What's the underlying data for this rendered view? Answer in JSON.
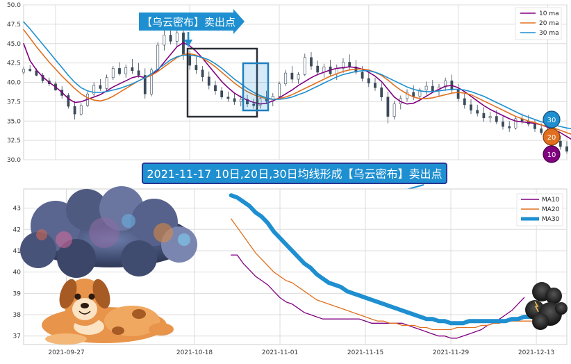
{
  "colors": {
    "ma10": "#800080",
    "ma20": "#e07020",
    "ma30": "#1e8fd0",
    "candle": "#3a4a5a",
    "grid": "#dcdcdc",
    "panel_bg": "#ffffff",
    "callout_fill": "#1e8fd0",
    "callout_border": "#283593",
    "box_dark": "#2b2f36",
    "box_blue": "#1e7fc0"
  },
  "callouts": {
    "top_arrow_text": "【乌云密布】卖出点",
    "middle_banner_text": "2021-11-17 10日,20日,30日均线形成【乌云密布】卖出点"
  },
  "badges": {
    "b30": "30",
    "b20": "20",
    "b10": "10"
  },
  "decorations": [
    "storm-cloud-illustration",
    "cartoon-dog-illustration",
    "small-dark-cloud-illustration"
  ],
  "chart_data": [
    {
      "type": "line",
      "title": "",
      "xlim": [
        "2021-09-22",
        "2021-12-16"
      ],
      "ylim": [
        30.0,
        50.0
      ],
      "y_ticks": [
        "30.0",
        "32.5",
        "35.0",
        "37.5",
        "40.0",
        "42.5",
        "45.0",
        "47.5",
        "50.0"
      ],
      "grid": true,
      "legend_position": "top-right",
      "candles": [
        [
          41.3,
          42.0,
          41.0,
          41.7
        ],
        [
          41.7,
          42.2,
          41.3,
          41.5
        ],
        [
          41.5,
          41.8,
          40.8,
          40.9
        ],
        [
          40.9,
          41.2,
          39.9,
          40.2
        ],
        [
          40.2,
          40.6,
          39.5,
          39.8
        ],
        [
          39.8,
          40.1,
          38.9,
          39.0
        ],
        [
          39.0,
          39.5,
          37.9,
          38.3
        ],
        [
          38.3,
          38.6,
          36.6,
          36.9
        ],
        [
          36.9,
          37.6,
          35.2,
          35.9
        ],
        [
          35.9,
          37.3,
          35.7,
          37.0
        ],
        [
          37.0,
          38.8,
          36.8,
          38.5
        ],
        [
          38.5,
          40.0,
          38.2,
          39.6
        ],
        [
          39.6,
          40.4,
          38.9,
          39.2
        ],
        [
          39.2,
          41.0,
          39.0,
          40.6
        ],
        [
          40.6,
          42.1,
          40.3,
          41.8
        ],
        [
          41.8,
          42.6,
          40.9,
          41.1
        ],
        [
          41.1,
          42.3,
          40.6,
          41.9
        ],
        [
          41.9,
          43.0,
          41.1,
          41.5
        ],
        [
          41.5,
          42.5,
          40.6,
          40.9
        ],
        [
          40.9,
          41.8,
          37.9,
          38.5
        ],
        [
          38.5,
          41.9,
          38.2,
          41.6
        ],
        [
          41.6,
          45.2,
          41.3,
          44.8
        ],
        [
          44.8,
          46.8,
          44.1,
          46.1
        ],
        [
          46.1,
          47.6,
          44.9,
          45.3
        ],
        [
          45.3,
          46.9,
          44.6,
          46.4
        ],
        [
          46.4,
          47.1,
          42.9,
          43.6
        ],
        [
          43.6,
          44.1,
          41.6,
          42.2
        ],
        [
          42.2,
          43.3,
          41.1,
          41.6
        ],
        [
          41.6,
          42.1,
          40.1,
          40.7
        ],
        [
          40.7,
          41.4,
          39.1,
          39.6
        ],
        [
          39.6,
          40.2,
          38.4,
          38.9
        ],
        [
          38.9,
          39.4,
          37.8,
          38.1
        ],
        [
          38.1,
          38.8,
          37.5,
          37.9
        ],
        [
          37.9,
          38.6,
          37.1,
          37.5
        ],
        [
          37.5,
          38.3,
          36.9,
          37.8
        ],
        [
          37.8,
          38.4,
          36.8,
          37.2
        ],
        [
          37.2,
          37.9,
          36.6,
          37.0
        ],
        [
          37.0,
          38.2,
          36.6,
          37.9
        ],
        [
          37.9,
          38.9,
          37.2,
          37.6
        ],
        [
          37.6,
          38.6,
          36.9,
          38.2
        ],
        [
          38.2,
          40.1,
          38.0,
          39.8
        ],
        [
          39.8,
          41.6,
          39.5,
          41.2
        ],
        [
          41.2,
          42.1,
          39.9,
          40.4
        ],
        [
          40.4,
          41.3,
          39.8,
          41.0
        ],
        [
          41.0,
          43.7,
          40.8,
          43.2
        ],
        [
          43.2,
          43.9,
          41.6,
          42.1
        ],
        [
          42.1,
          42.8,
          40.9,
          41.3
        ],
        [
          41.3,
          42.4,
          40.6,
          42.0
        ],
        [
          42.0,
          42.9,
          40.8,
          41.1
        ],
        [
          41.1,
          42.3,
          40.3,
          41.8
        ],
        [
          41.8,
          43.1,
          41.2,
          42.6
        ],
        [
          42.6,
          43.6,
          41.6,
          42.0
        ],
        [
          42.0,
          42.9,
          41.0,
          41.3
        ],
        [
          41.3,
          42.1,
          40.1,
          40.5
        ],
        [
          40.5,
          41.3,
          39.4,
          39.9
        ],
        [
          39.9,
          40.6,
          38.9,
          39.3
        ],
        [
          39.3,
          39.9,
          37.6,
          38.1
        ],
        [
          38.1,
          38.8,
          34.7,
          35.6
        ],
        [
          35.6,
          37.6,
          35.2,
          37.2
        ],
        [
          37.2,
          38.3,
          36.5,
          37.9
        ],
        [
          37.9,
          39.1,
          37.5,
          38.7
        ],
        [
          38.7,
          39.6,
          37.7,
          38.2
        ],
        [
          38.2,
          39.3,
          37.6,
          39.0
        ],
        [
          39.0,
          40.1,
          38.4,
          39.5
        ],
        [
          39.5,
          40.3,
          38.6,
          38.9
        ],
        [
          38.9,
          39.8,
          38.1,
          39.4
        ],
        [
          39.4,
          40.6,
          38.9,
          40.2
        ],
        [
          40.2,
          41.0,
          38.6,
          39.0
        ],
        [
          39.0,
          39.8,
          37.5,
          37.9
        ],
        [
          37.9,
          38.6,
          36.6,
          37.1
        ],
        [
          37.1,
          37.8,
          35.9,
          36.4
        ],
        [
          36.4,
          37.1,
          35.6,
          36.0
        ],
        [
          36.0,
          36.8,
          34.9,
          35.4
        ],
        [
          35.4,
          36.2,
          34.8,
          35.6
        ],
        [
          35.6,
          36.4,
          34.6,
          34.9
        ],
        [
          34.9,
          35.6,
          33.9,
          34.3
        ],
        [
          34.3,
          35.0,
          33.6,
          34.1
        ],
        [
          34.1,
          35.6,
          33.9,
          35.3
        ],
        [
          35.3,
          36.0,
          34.6,
          35.0
        ],
        [
          35.0,
          35.8,
          34.3,
          34.6
        ],
        [
          34.6,
          35.2,
          33.6,
          34.0
        ],
        [
          34.0,
          34.7,
          33.2,
          33.5
        ],
        [
          33.5,
          34.2,
          32.7,
          33.1
        ],
        [
          33.1,
          33.7,
          32.1,
          32.4
        ],
        [
          32.4,
          33.1,
          31.3,
          31.7
        ],
        [
          31.7,
          32.4,
          30.8,
          31.1
        ],
        [
          31.1,
          32.0,
          30.9,
          31.8
        ],
        [
          31.8,
          32.6,
          31.4,
          32.3
        ],
        [
          32.3,
          33.1,
          32.0,
          32.8
        ],
        [
          32.8,
          33.4,
          32.4,
          33.1
        ]
      ],
      "series": [
        {
          "name": "10 ma",
          "start": "2021-09-22",
          "values": [
            45.0,
            42.8,
            41.6,
            40.7,
            40.0,
            39.4,
            38.7,
            37.9,
            37.4,
            37.5,
            37.8,
            38.1,
            38.4,
            38.9,
            39.4,
            39.8,
            40.2,
            40.6,
            40.8,
            40.6,
            40.9,
            41.6,
            42.6,
            43.6,
            44.6,
            45.1,
            44.7,
            44.0,
            43.1,
            42.1,
            41.1,
            40.1,
            39.3,
            38.6,
            38.1,
            37.7,
            37.4,
            37.2,
            37.3,
            37.6,
            38.0,
            38.5,
            39.0,
            39.6,
            40.1,
            40.6,
            41.0,
            41.3,
            41.6,
            41.8,
            41.9,
            42.0,
            41.9,
            41.7,
            41.3,
            40.8,
            40.1,
            39.1,
            38.1,
            37.5,
            37.2,
            37.3,
            37.7,
            38.2,
            38.7,
            39.1,
            39.5,
            39.6,
            39.3,
            38.8,
            38.2,
            37.6,
            37.0,
            36.5,
            36.1,
            35.7,
            35.3,
            35.0,
            34.9,
            34.8,
            34.7,
            34.5,
            34.2,
            33.9,
            33.5,
            33.0,
            32.5,
            32.3,
            32.2,
            32.3
          ]
        },
        {
          "name": "20 ma",
          "start": "2021-09-22",
          "values": [
            46.8,
            45.7,
            44.6,
            43.6,
            42.6,
            41.7,
            40.8,
            40.0,
            39.2,
            38.5,
            38.0,
            37.7,
            37.6,
            37.8,
            38.2,
            38.7,
            39.2,
            39.7,
            40.2,
            40.6,
            40.9,
            41.4,
            42.0,
            42.6,
            43.2,
            43.6,
            43.7,
            43.5,
            43.1,
            42.6,
            42.0,
            41.3,
            40.6,
            39.9,
            39.3,
            38.8,
            38.4,
            38.1,
            37.9,
            37.8,
            37.9,
            38.1,
            38.4,
            38.8,
            39.2,
            39.6,
            40.0,
            40.4,
            40.8,
            41.1,
            41.4,
            41.6,
            41.7,
            41.7,
            41.6,
            41.3,
            40.9,
            40.3,
            39.6,
            39.0,
            38.5,
            38.1,
            37.9,
            37.9,
            38.0,
            38.2,
            38.4,
            38.6,
            38.7,
            38.6,
            38.4,
            38.0,
            37.6,
            37.2,
            36.8,
            36.4,
            36.0,
            35.6,
            35.3,
            35.0,
            34.8,
            34.5,
            34.3,
            34.1,
            33.8,
            33.5,
            33.2,
            32.9,
            32.6,
            32.4
          ]
        },
        {
          "name": "30 ma",
          "start": "2021-09-22",
          "values": [
            47.8,
            46.9,
            45.9,
            44.9,
            43.9,
            42.9,
            41.9,
            40.9,
            40.0,
            39.3,
            38.9,
            38.7,
            38.7,
            38.8,
            39.0,
            39.2,
            39.5,
            39.8,
            40.2,
            40.6,
            41.1,
            41.7,
            42.3,
            42.9,
            43.3,
            43.5,
            43.5,
            43.4,
            43.2,
            42.9,
            42.4,
            41.8,
            41.1,
            40.4,
            39.8,
            39.2,
            38.7,
            38.3,
            38.0,
            37.8,
            37.8,
            37.9,
            38.1,
            38.4,
            38.7,
            39.1,
            39.5,
            39.9,
            40.3,
            40.7,
            41.0,
            41.2,
            41.4,
            41.5,
            41.5,
            41.3,
            41.0,
            40.6,
            40.2,
            39.8,
            39.4,
            39.1,
            38.9,
            38.8,
            38.8,
            38.9,
            39.0,
            39.1,
            39.1,
            39.0,
            38.8,
            38.5,
            38.2,
            37.8,
            37.4,
            37.0,
            36.6,
            36.2,
            35.8,
            35.5,
            35.2,
            34.9,
            34.7,
            34.5,
            34.3,
            34.1,
            34.0,
            33.9,
            33.8,
            33.6
          ]
        }
      ]
    },
    {
      "type": "line",
      "title": "",
      "x_ticks": [
        "2021-09-27",
        "2021-10-18",
        "2021-11-01",
        "2021-11-15",
        "2021-11-29",
        "2021-12-13"
      ],
      "xlim": [
        "2021-09-20",
        "2021-12-18"
      ],
      "ylim": [
        36.6,
        43.9
      ],
      "y_ticks": [
        "37",
        "38",
        "39",
        "40",
        "41",
        "42",
        "43"
      ],
      "grid": true,
      "legend_position": "top-right",
      "series": [
        {
          "name": "MA10",
          "start": "2021-10-24",
          "values": [
            40.8,
            40.8,
            40.4,
            40.1,
            39.8,
            39.6,
            39.4,
            39.1,
            38.8,
            38.6,
            38.5,
            38.3,
            38.1,
            38.0,
            37.9,
            37.8,
            37.8,
            37.8,
            37.8,
            37.8,
            37.8,
            37.8,
            37.7,
            37.6,
            37.6,
            37.6,
            37.6,
            37.6,
            37.6,
            37.5,
            37.4,
            37.3,
            37.2,
            37.1,
            37.0,
            37.0,
            36.9,
            36.9,
            37.0,
            37.1,
            37.2,
            37.3,
            37.5,
            37.6,
            37.8,
            38.0,
            38.2,
            38.5,
            38.8
          ]
        },
        {
          "name": "MA20",
          "start": "2021-10-24",
          "values": [
            42.5,
            42.1,
            41.7,
            41.3,
            40.9,
            40.6,
            40.3,
            40.0,
            39.8,
            39.6,
            39.5,
            39.3,
            39.1,
            38.9,
            38.7,
            38.6,
            38.5,
            38.4,
            38.3,
            38.2,
            38.1,
            38.0,
            37.9,
            37.8,
            37.7,
            37.7,
            37.6,
            37.6,
            37.5,
            37.5,
            37.5,
            37.4,
            37.4,
            37.3,
            37.3,
            37.3,
            37.3,
            37.4,
            37.4,
            37.4,
            37.4,
            37.5,
            37.5,
            37.6,
            37.6,
            37.7,
            37.7,
            37.7,
            37.7,
            37.7,
            37.7,
            37.8
          ]
        },
        {
          "name": "MA30",
          "start": "2021-10-24",
          "values": [
            43.6,
            43.5,
            43.3,
            43.1,
            42.8,
            42.6,
            42.3,
            41.9,
            41.6,
            41.3,
            41.0,
            40.7,
            40.4,
            40.2,
            39.9,
            39.7,
            39.5,
            39.4,
            39.3,
            39.1,
            39.0,
            38.9,
            38.8,
            38.7,
            38.6,
            38.5,
            38.4,
            38.3,
            38.2,
            38.1,
            38.0,
            37.9,
            37.8,
            37.8,
            37.7,
            37.7,
            37.6,
            37.6,
            37.6,
            37.7,
            37.7,
            37.7,
            37.7,
            37.7,
            37.7,
            37.7,
            37.8,
            37.8,
            37.9,
            37.9,
            38.0,
            38.0
          ]
        }
      ]
    }
  ]
}
